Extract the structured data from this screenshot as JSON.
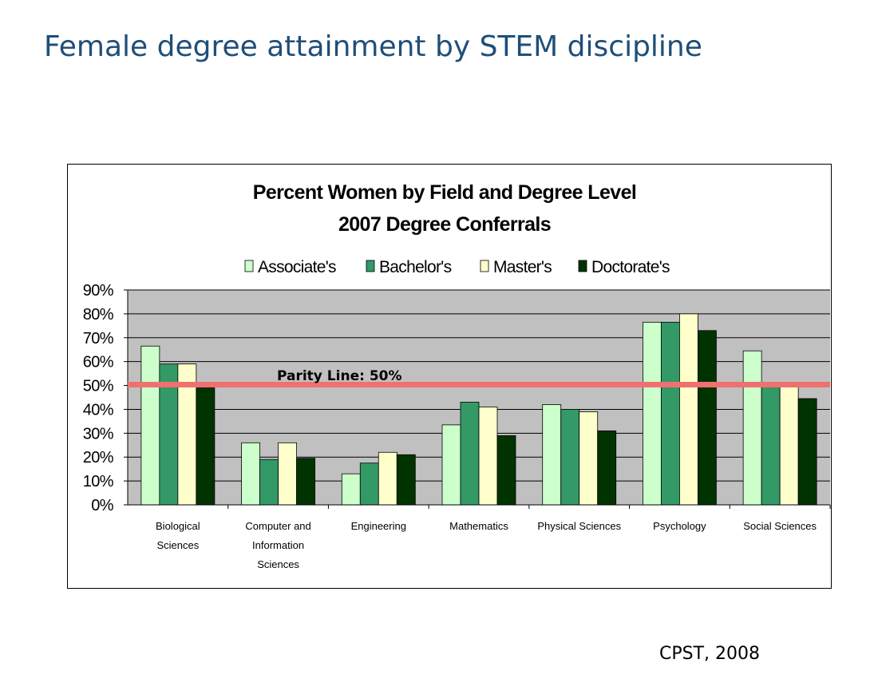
{
  "slide": {
    "title": "Female degree attainment by STEM discipline",
    "source": "CPST, 2008"
  },
  "chart_data": {
    "type": "bar",
    "title": "Percent Women by Field and Degree Level",
    "subtitle": "2007 Degree Conferrals",
    "categories": [
      "Biological Sciences",
      "Computer and Information Sciences",
      "Engineering",
      "Mathematics",
      "Physical Sciences",
      "Psychology",
      "Social Sciences"
    ],
    "category_lines": [
      [
        "Biological",
        "Sciences"
      ],
      [
        "Computer and",
        "Information",
        "Sciences"
      ],
      [
        "Engineering"
      ],
      [
        "Mathematics"
      ],
      [
        "Physical Sciences"
      ],
      [
        "Psychology"
      ],
      [
        "Social Sciences"
      ]
    ],
    "series": [
      {
        "name": "Associate's",
        "values": [
          66.5,
          26,
          13,
          33.5,
          42,
          76.5,
          64.5
        ],
        "color": "#ccffcc"
      },
      {
        "name": "Bachelor's",
        "values": [
          59,
          19,
          17.5,
          43,
          40,
          76.5,
          50
        ],
        "color": "#339966"
      },
      {
        "name": "Master's",
        "values": [
          59,
          26,
          22,
          41,
          39,
          80,
          50.5
        ],
        "color": "#ffffcc"
      },
      {
        "name": "Doctorate's",
        "values": [
          49,
          19.5,
          21,
          29,
          31,
          73,
          44.5
        ],
        "color": "#003300"
      }
    ],
    "ylim": [
      0,
      90
    ],
    "y_ticks": [
      "0%",
      "10%",
      "20%",
      "30%",
      "40%",
      "50%",
      "60%",
      "70%",
      "80%",
      "90%"
    ],
    "grid": true,
    "legend_position": "top",
    "plot_background": "#c0c0c0",
    "annotation": {
      "text": "Parity Line: 50%",
      "value": 50,
      "color": "#f07070"
    }
  }
}
